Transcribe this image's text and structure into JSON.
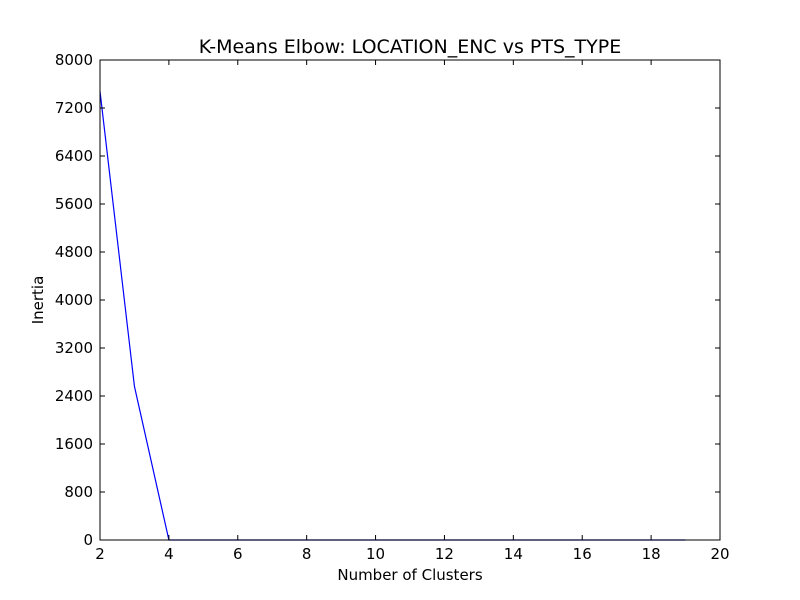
{
  "chart_data": {
    "type": "line",
    "title": "K-Means Elbow: LOCATION_ENC vs PTS_TYPE",
    "xlabel": "Number of Clusters",
    "ylabel": "Inertia",
    "xlim": [
      2,
      20
    ],
    "ylim": [
      0,
      8000
    ],
    "xticks": [
      2,
      4,
      6,
      8,
      10,
      12,
      14,
      16,
      18,
      20
    ],
    "yticks": [
      0,
      800,
      1600,
      2400,
      3200,
      4000,
      4800,
      5600,
      6400,
      7200,
      8000
    ],
    "grid": false,
    "series": [
      {
        "color": "#0000ff",
        "x": [
          2,
          3,
          4,
          5,
          6,
          7,
          8,
          9,
          10,
          11,
          12,
          13,
          14,
          15,
          16,
          17,
          18,
          19
        ],
        "y": [
          7480,
          2560,
          0,
          0,
          0,
          0,
          0,
          0,
          0,
          0,
          0,
          0,
          0,
          0,
          0,
          0,
          0,
          0
        ]
      }
    ]
  }
}
